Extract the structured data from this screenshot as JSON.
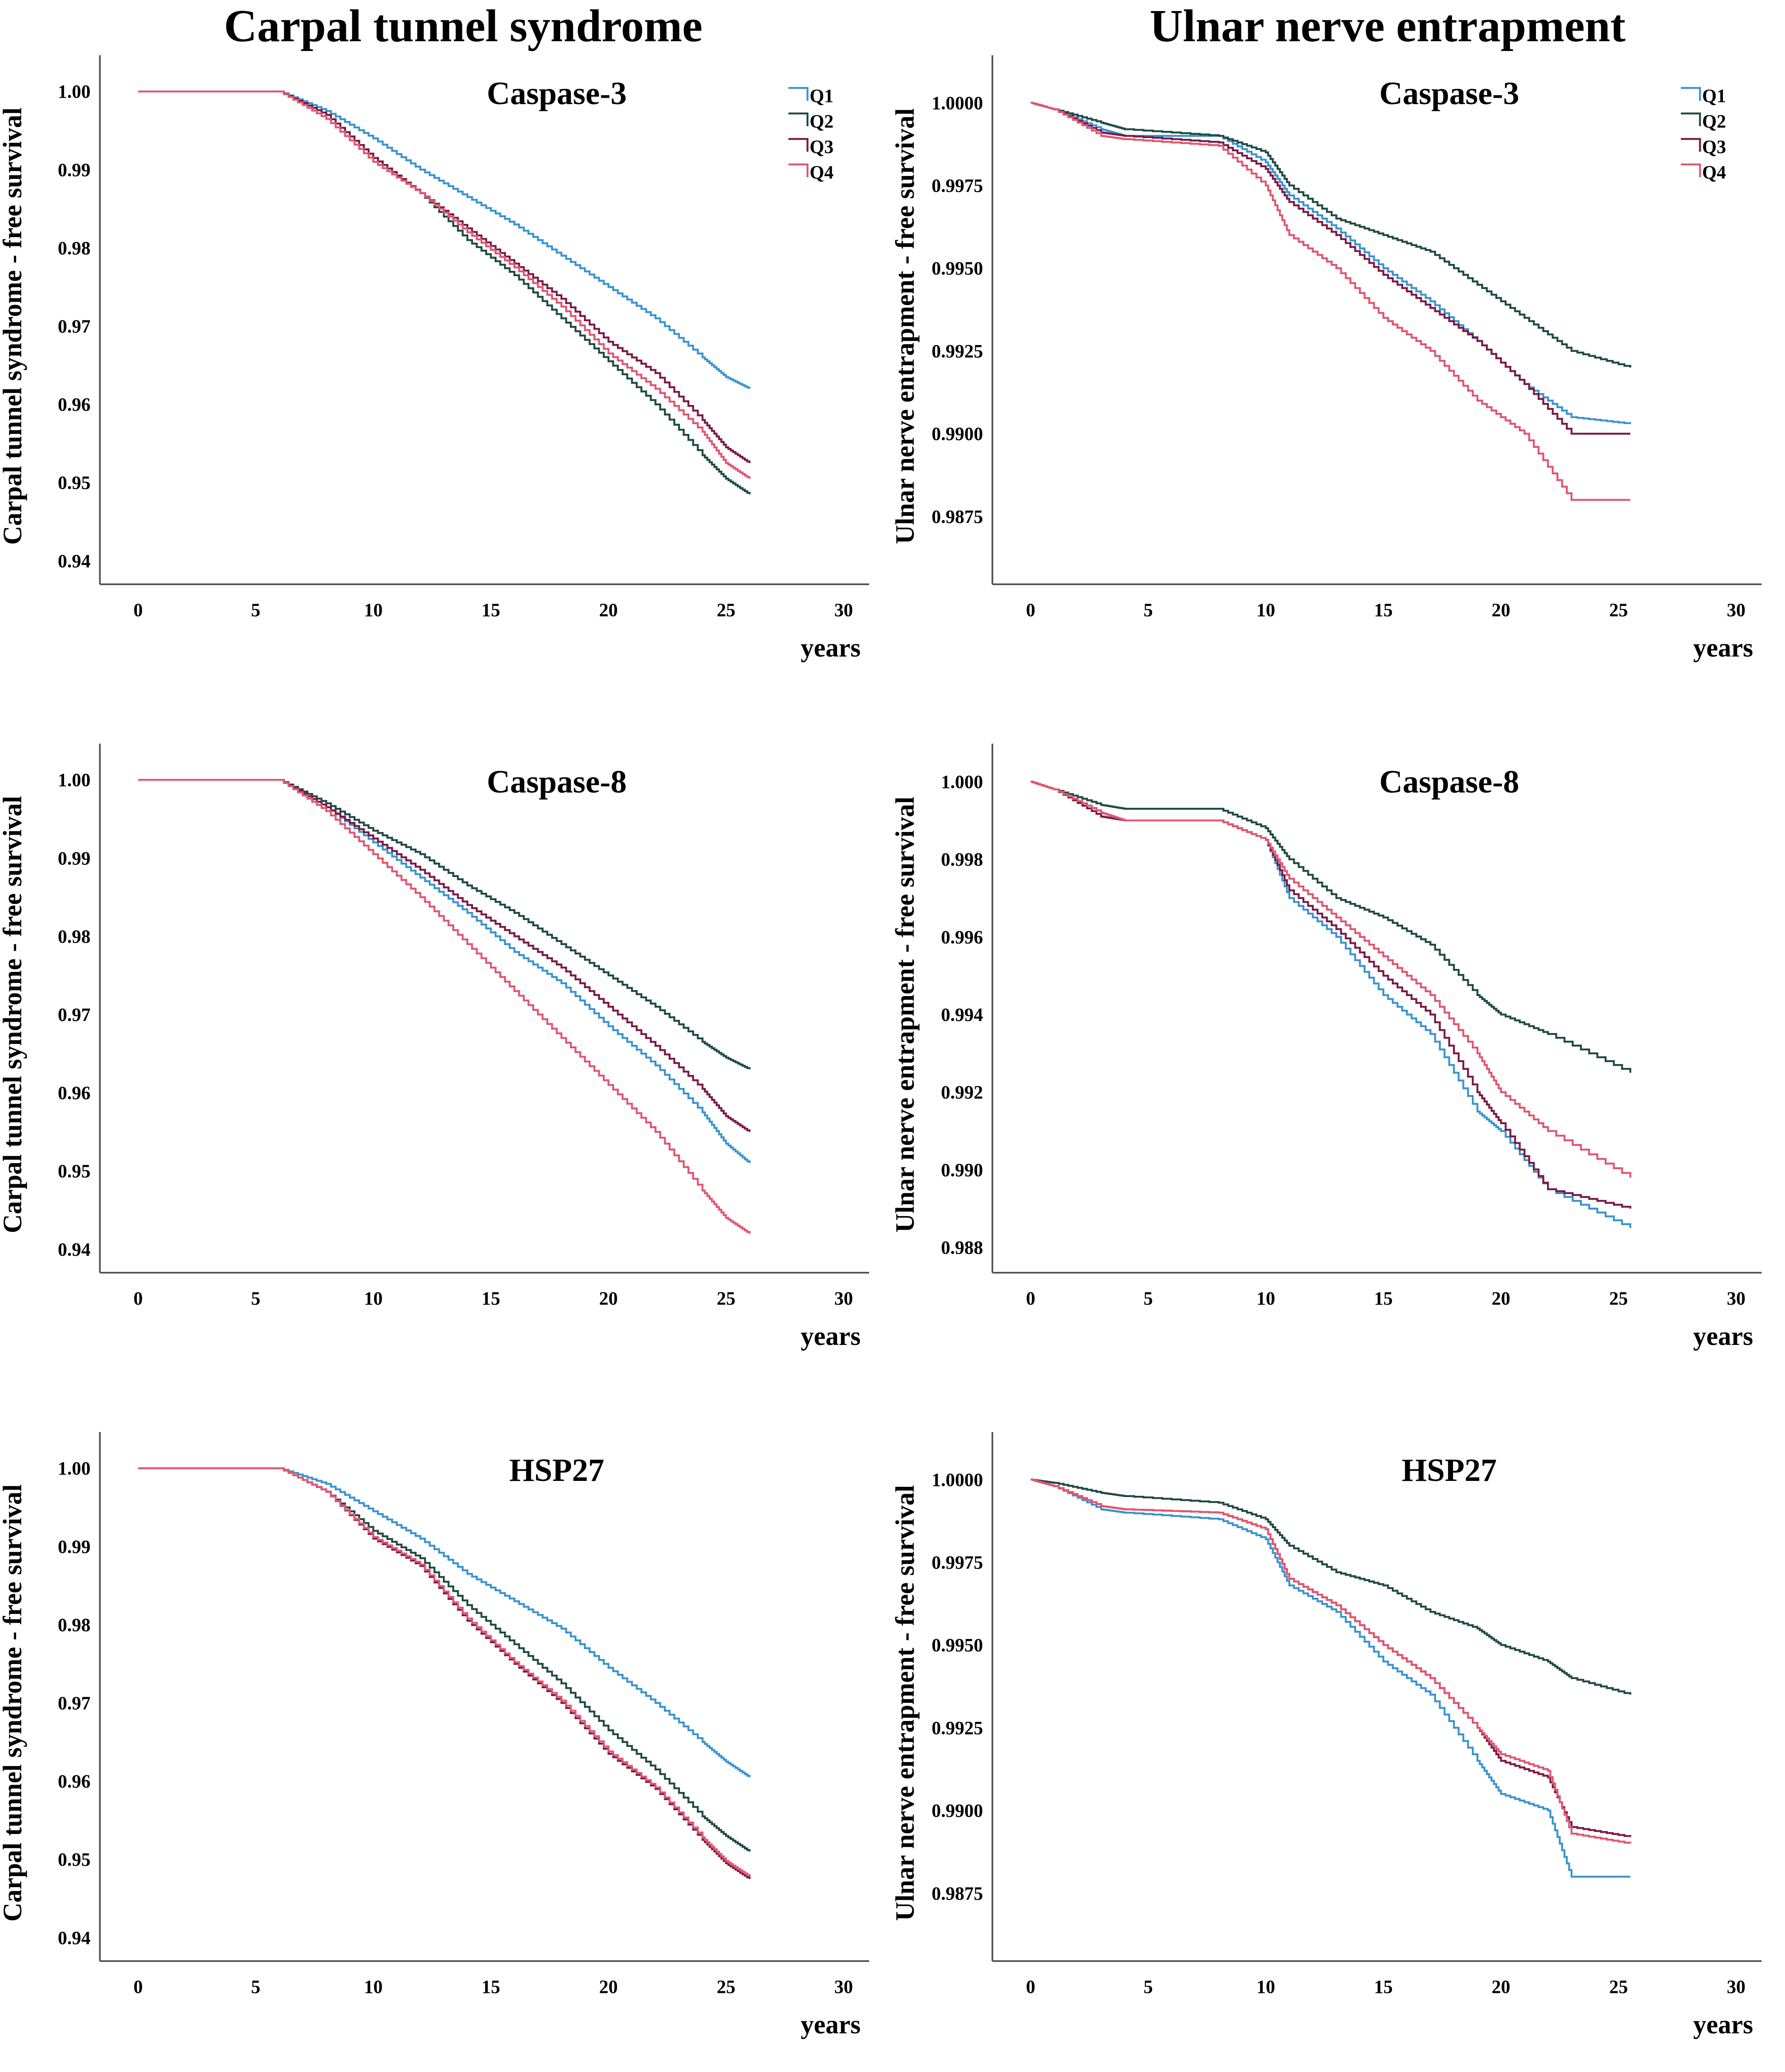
{
  "column_titles": [
    "Carpal tunnel syndrome",
    "Ulnar nerve entrapment"
  ],
  "legend": [
    "Q1",
    "Q2",
    "Q3",
    "Q4"
  ],
  "colors": {
    "Q1": "#3a93cf",
    "Q2": "#1e4a42",
    "Q3": "#7a1a44",
    "Q4": "#e0566f"
  },
  "chart_data": [
    {
      "type": "line",
      "title": "Caspase-3",
      "xlabel": "years",
      "ylabel": "Carpal tunnel syndrome - free survival",
      "xlim": [
        0,
        30
      ],
      "ylim": [
        0.937,
        1.003
      ],
      "xticks": [
        "0",
        "5",
        "10",
        "15",
        "20",
        "25",
        "30"
      ],
      "yticks": [
        "1.00",
        "0.99",
        "0.98",
        "0.97",
        "0.96",
        "0.95",
        "0.94"
      ],
      "show_legend": true,
      "series": [
        {
          "name": "Q1",
          "x": [
            0,
            6,
            8,
            10,
            12,
            14,
            16,
            18,
            20,
            22,
            24,
            25,
            26
          ],
          "y": [
            1.0,
            1.0,
            0.9975,
            0.994,
            0.99,
            0.9865,
            0.983,
            0.979,
            0.975,
            0.971,
            0.966,
            0.9635,
            0.962
          ]
        },
        {
          "name": "Q2",
          "x": [
            0,
            6,
            8,
            10,
            12,
            14,
            16,
            18,
            20,
            22,
            24,
            25,
            26
          ],
          "y": [
            1.0,
            1.0,
            0.997,
            0.9915,
            0.987,
            0.981,
            0.9765,
            0.971,
            0.9655,
            0.96,
            0.9535,
            0.9505,
            0.9485
          ]
        },
        {
          "name": "Q3",
          "x": [
            0,
            6,
            8,
            10,
            12,
            14,
            16,
            18,
            20,
            22,
            24,
            25,
            26
          ],
          "y": [
            1.0,
            1.0,
            0.997,
            0.9915,
            0.987,
            0.9825,
            0.978,
            0.9735,
            0.968,
            0.964,
            0.958,
            0.9545,
            0.9525
          ]
        },
        {
          "name": "Q4",
          "x": [
            0,
            6,
            8,
            10,
            12,
            14,
            16,
            18,
            20,
            22,
            24,
            25,
            26
          ],
          "y": [
            1.0,
            1.0,
            0.9965,
            0.991,
            0.987,
            0.982,
            0.9775,
            0.9725,
            0.9665,
            0.962,
            0.9565,
            0.9525,
            0.9505
          ]
        }
      ]
    },
    {
      "type": "line",
      "title": "Caspase-3",
      "xlabel": "years",
      "ylabel": "Ulnar nerve entrapment - free survival",
      "xlim": [
        0,
        30
      ],
      "ylim": [
        0.98545,
        1.00105
      ],
      "xticks": [
        "0",
        "5",
        "10",
        "15",
        "20",
        "25",
        "30"
      ],
      "yticks": [
        "1.0000",
        "0.9975",
        "0.9950",
        "0.9925",
        "0.9900",
        "0.9875"
      ],
      "show_legend": true,
      "series": [
        {
          "name": "Q1",
          "x": [
            0,
            1,
            3,
            4,
            8,
            10,
            11,
            13,
            15,
            17,
            19,
            21,
            23,
            25.5
          ],
          "y": [
            1.0,
            0.9998,
            0.9992,
            0.999,
            0.999,
            0.9982,
            0.9972,
            0.9962,
            0.995,
            0.994,
            0.9928,
            0.9915,
            0.9905,
            0.9903
          ]
        },
        {
          "name": "Q2",
          "x": [
            0,
            1,
            3,
            4,
            8,
            10,
            11,
            13,
            15,
            17,
            19,
            21,
            23,
            25.5
          ],
          "y": [
            1.0,
            0.9998,
            0.9994,
            0.9992,
            0.999,
            0.9985,
            0.9975,
            0.9965,
            0.996,
            0.9955,
            0.9945,
            0.9935,
            0.9925,
            0.992
          ]
        },
        {
          "name": "Q3",
          "x": [
            0,
            1,
            3,
            4,
            8,
            10,
            11,
            13,
            15,
            17,
            19,
            21,
            23,
            25.5
          ],
          "y": [
            1.0,
            0.9998,
            0.9991,
            0.999,
            0.9988,
            0.998,
            0.997,
            0.996,
            0.9948,
            0.9938,
            0.9928,
            0.9915,
            0.99,
            0.99
          ]
        },
        {
          "name": "Q4",
          "x": [
            0,
            1,
            3,
            4,
            8,
            10,
            11,
            13,
            15,
            17,
            19,
            21,
            23,
            25.5
          ],
          "y": [
            1.0,
            0.9998,
            0.999,
            0.9989,
            0.9987,
            0.9975,
            0.996,
            0.995,
            0.9935,
            0.9925,
            0.991,
            0.99,
            0.988,
            0.988
          ]
        }
      ]
    },
    {
      "type": "line",
      "title": "Caspase-8",
      "xlabel": "years",
      "ylabel": "Carpal tunnel syndrome - free survival",
      "xlim": [
        0,
        30
      ],
      "ylim": [
        0.937,
        1.003
      ],
      "xticks": [
        "0",
        "5",
        "10",
        "15",
        "20",
        "25",
        "30"
      ],
      "yticks": [
        "1.00",
        "0.99",
        "0.98",
        "0.97",
        "0.96",
        "0.95",
        "0.94"
      ],
      "show_legend": false,
      "series": [
        {
          "name": "Q1",
          "x": [
            0,
            6,
            8,
            10,
            12,
            14,
            16,
            18,
            20,
            22,
            24,
            25,
            26
          ],
          "y": [
            1.0,
            1.0,
            0.9965,
            0.992,
            0.9875,
            0.983,
            0.978,
            0.974,
            0.9685,
            0.9635,
            0.9575,
            0.9535,
            0.951
          ]
        },
        {
          "name": "Q2",
          "x": [
            0,
            6,
            8,
            10,
            12,
            14,
            16,
            18,
            20,
            22,
            24,
            25,
            26
          ],
          "y": [
            1.0,
            1.0,
            0.997,
            0.9935,
            0.9905,
            0.9865,
            0.983,
            0.979,
            0.975,
            0.971,
            0.9665,
            0.9645,
            0.963
          ]
        },
        {
          "name": "Q3",
          "x": [
            0,
            6,
            8,
            10,
            12,
            14,
            16,
            18,
            20,
            22,
            24,
            25,
            26
          ],
          "y": [
            1.0,
            1.0,
            0.9965,
            0.9925,
            0.9885,
            0.984,
            0.98,
            0.976,
            0.971,
            0.966,
            0.9605,
            0.957,
            0.955
          ]
        },
        {
          "name": "Q4",
          "x": [
            0,
            6,
            8,
            10,
            12,
            14,
            16,
            18,
            20,
            22,
            24,
            25,
            26
          ],
          "y": [
            1.0,
            1.0,
            0.996,
            0.9905,
            0.985,
            0.979,
            0.973,
            0.967,
            0.961,
            0.955,
            0.9475,
            0.944,
            0.942
          ]
        }
      ]
    },
    {
      "type": "line",
      "title": "Caspase-8",
      "xlabel": "years",
      "ylabel": "Ulnar nerve entrapment - free survival",
      "xlim": [
        0,
        30
      ],
      "ylim": [
        0.98735,
        1.00065
      ],
      "xticks": [
        "0",
        "5",
        "10",
        "15",
        "20",
        "25",
        "30"
      ],
      "yticks": [
        "1.000",
        "0.998",
        "0.996",
        "0.994",
        "0.992",
        "0.990",
        "0.988"
      ],
      "show_legend": false,
      "series": [
        {
          "name": "Q1",
          "x": [
            0,
            1,
            3,
            4,
            8,
            10,
            11,
            13,
            15,
            17,
            19,
            20,
            22,
            25.5
          ],
          "y": [
            1.0,
            0.9998,
            0.9992,
            0.999,
            0.999,
            0.9985,
            0.997,
            0.996,
            0.9945,
            0.9935,
            0.9915,
            0.991,
            0.9895,
            0.9885
          ]
        },
        {
          "name": "Q2",
          "x": [
            0,
            1,
            3,
            4,
            8,
            10,
            11,
            13,
            15,
            17,
            19,
            20,
            22,
            25.5
          ],
          "y": [
            1.0,
            0.9998,
            0.9994,
            0.9993,
            0.9993,
            0.9988,
            0.998,
            0.997,
            0.9965,
            0.9958,
            0.9945,
            0.994,
            0.9935,
            0.9925
          ]
        },
        {
          "name": "Q3",
          "x": [
            0,
            1,
            3,
            4,
            8,
            10,
            11,
            13,
            15,
            17,
            19,
            20,
            22,
            25.5
          ],
          "y": [
            1.0,
            0.9998,
            0.9991,
            0.999,
            0.999,
            0.9985,
            0.9972,
            0.9962,
            0.995,
            0.994,
            0.992,
            0.9912,
            0.9895,
            0.989
          ]
        },
        {
          "name": "Q4",
          "x": [
            0,
            1,
            3,
            4,
            8,
            10,
            11,
            13,
            15,
            17,
            19,
            20,
            22,
            25.5
          ],
          "y": [
            1.0,
            0.9998,
            0.9992,
            0.999,
            0.999,
            0.9985,
            0.9975,
            0.9965,
            0.9955,
            0.9945,
            0.993,
            0.992,
            0.991,
            0.9898
          ]
        }
      ]
    },
    {
      "type": "line",
      "title": "HSP27",
      "xlabel": "years",
      "ylabel": "Carpal tunnel syndrome - free survival",
      "xlim": [
        0,
        30
      ],
      "ylim": [
        0.937,
        1.003
      ],
      "xticks": [
        "0",
        "5",
        "10",
        "15",
        "20",
        "25",
        "30"
      ],
      "yticks": [
        "1.00",
        "0.99",
        "0.98",
        "0.97",
        "0.96",
        "0.95",
        "0.94"
      ],
      "show_legend": false,
      "series": [
        {
          "name": "Q1",
          "x": [
            0,
            6,
            8,
            10,
            12,
            14,
            16,
            18,
            20,
            22,
            24,
            25,
            26
          ],
          "y": [
            1.0,
            1.0,
            0.998,
            0.9945,
            0.991,
            0.9865,
            0.983,
            0.9795,
            0.9745,
            0.97,
            0.965,
            0.9625,
            0.9605
          ]
        },
        {
          "name": "Q2",
          "x": [
            0,
            6,
            8,
            10,
            12,
            14,
            16,
            18,
            20,
            22,
            24,
            25,
            26
          ],
          "y": [
            1.0,
            1.0,
            0.997,
            0.992,
            0.9885,
            0.9825,
            0.9775,
            0.9725,
            0.9665,
            0.9615,
            0.9555,
            0.953,
            0.951
          ]
        },
        {
          "name": "Q3",
          "x": [
            0,
            6,
            8,
            10,
            12,
            14,
            16,
            18,
            20,
            22,
            24,
            25,
            26
          ],
          "y": [
            1.0,
            1.0,
            0.997,
            0.991,
            0.9875,
            0.9805,
            0.975,
            0.97,
            0.9635,
            0.959,
            0.9525,
            0.9495,
            0.9475
          ]
        },
        {
          "name": "Q4",
          "x": [
            0,
            6,
            8,
            10,
            12,
            14,
            16,
            18,
            20,
            22,
            24,
            25,
            26
          ],
          "y": [
            1.0,
            1.0,
            0.997,
            0.9912,
            0.9877,
            0.9808,
            0.9752,
            0.9703,
            0.9638,
            0.9592,
            0.9528,
            0.9498,
            0.9478
          ]
        }
      ]
    },
    {
      "type": "line",
      "title": "HSP27",
      "xlabel": "years",
      "ylabel": "Ulnar nerve entrapment - free survival",
      "xlim": [
        0,
        30
      ],
      "ylim": [
        0.98545,
        1.00105
      ],
      "xticks": [
        "0",
        "5",
        "10",
        "15",
        "20",
        "25",
        "30"
      ],
      "yticks": [
        "1.0000",
        "0.9975",
        "0.9950",
        "0.9925",
        "0.9900",
        "0.9875"
      ],
      "show_legend": false,
      "series": [
        {
          "name": "Q1",
          "x": [
            0,
            1,
            3,
            4,
            8,
            10,
            11,
            13,
            15,
            17,
            19,
            20,
            22,
            23,
            25.5
          ],
          "y": [
            1.0,
            0.9998,
            0.9991,
            0.999,
            0.9988,
            0.9982,
            0.9968,
            0.996,
            0.9945,
            0.9935,
            0.9915,
            0.9905,
            0.99,
            0.988,
            0.988
          ]
        },
        {
          "name": "Q2",
          "x": [
            0,
            1,
            3,
            4,
            8,
            10,
            11,
            13,
            15,
            17,
            19,
            20,
            22,
            23,
            25.5
          ],
          "y": [
            1.0,
            0.9999,
            0.9996,
            0.9995,
            0.9993,
            0.9988,
            0.998,
            0.9972,
            0.9968,
            0.996,
            0.9955,
            0.995,
            0.9945,
            0.994,
            0.9935
          ]
        },
        {
          "name": "Q3",
          "x": [
            0,
            1,
            3,
            4,
            8,
            10,
            11,
            13,
            15,
            17,
            19,
            20,
            22,
            23,
            25.5
          ],
          "y": [
            1.0,
            0.9998,
            0.9992,
            0.9991,
            0.999,
            0.9985,
            0.997,
            0.9962,
            0.995,
            0.994,
            0.9925,
            0.9915,
            0.991,
            0.9895,
            0.9892
          ]
        },
        {
          "name": "Q4",
          "x": [
            0,
            1,
            3,
            4,
            8,
            10,
            11,
            13,
            15,
            17,
            19,
            20,
            22,
            23,
            25.5
          ],
          "y": [
            1.0,
            0.9998,
            0.9992,
            0.9991,
            0.999,
            0.9985,
            0.997,
            0.9962,
            0.995,
            0.994,
            0.9925,
            0.9917,
            0.9912,
            0.9893,
            0.989
          ]
        }
      ]
    }
  ]
}
